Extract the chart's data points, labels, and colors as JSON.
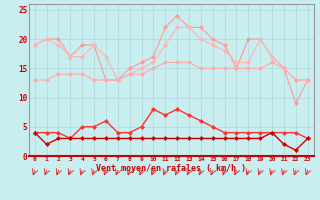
{
  "x": [
    0,
    1,
    2,
    3,
    4,
    5,
    6,
    7,
    8,
    9,
    10,
    11,
    12,
    13,
    14,
    15,
    16,
    17,
    18,
    19,
    20,
    21,
    22,
    23
  ],
  "line1": [
    19,
    20,
    20,
    17,
    19,
    19,
    13,
    13,
    15,
    16,
    17,
    22,
    24,
    22,
    22,
    20,
    19,
    15,
    20,
    20,
    17,
    15,
    9,
    13
  ],
  "line2": [
    19,
    20,
    19,
    17,
    17,
    19,
    17,
    13,
    14,
    15,
    16,
    19,
    22,
    22,
    20,
    19,
    18,
    16,
    16,
    20,
    17,
    15,
    13,
    13
  ],
  "line3": [
    13,
    13,
    14,
    14,
    14,
    13,
    13,
    13,
    14,
    14,
    15,
    16,
    16,
    16,
    15,
    15,
    15,
    15,
    15,
    15,
    16,
    15,
    13,
    13
  ],
  "line4": [
    4,
    4,
    4,
    3,
    5,
    5,
    6,
    4,
    4,
    5,
    8,
    7,
    8,
    7,
    6,
    5,
    4,
    4,
    4,
    4,
    4,
    4,
    4,
    3
  ],
  "line5": [
    4,
    2,
    3,
    3,
    3,
    3,
    3,
    3,
    3,
    3,
    3,
    3,
    3,
    3,
    3,
    3,
    3,
    3,
    3,
    3,
    4,
    2,
    1,
    3
  ],
  "color1": "#FF9999",
  "color2": "#FFB3B3",
  "color3": "#FFAAAA",
  "color4": "#FF3333",
  "color5": "#CC0000",
  "bg_color": "#C8EEF0",
  "xlabel": "Vent moyen/en rafales ( km/h )",
  "ylim": [
    0,
    26
  ],
  "yticks": [
    0,
    5,
    10,
    15,
    20,
    25
  ],
  "xticks": [
    0,
    1,
    2,
    3,
    4,
    5,
    6,
    7,
    8,
    9,
    10,
    11,
    12,
    13,
    14,
    15,
    16,
    17,
    18,
    19,
    20,
    21,
    22,
    23
  ],
  "arrow_color": "#DD2222"
}
